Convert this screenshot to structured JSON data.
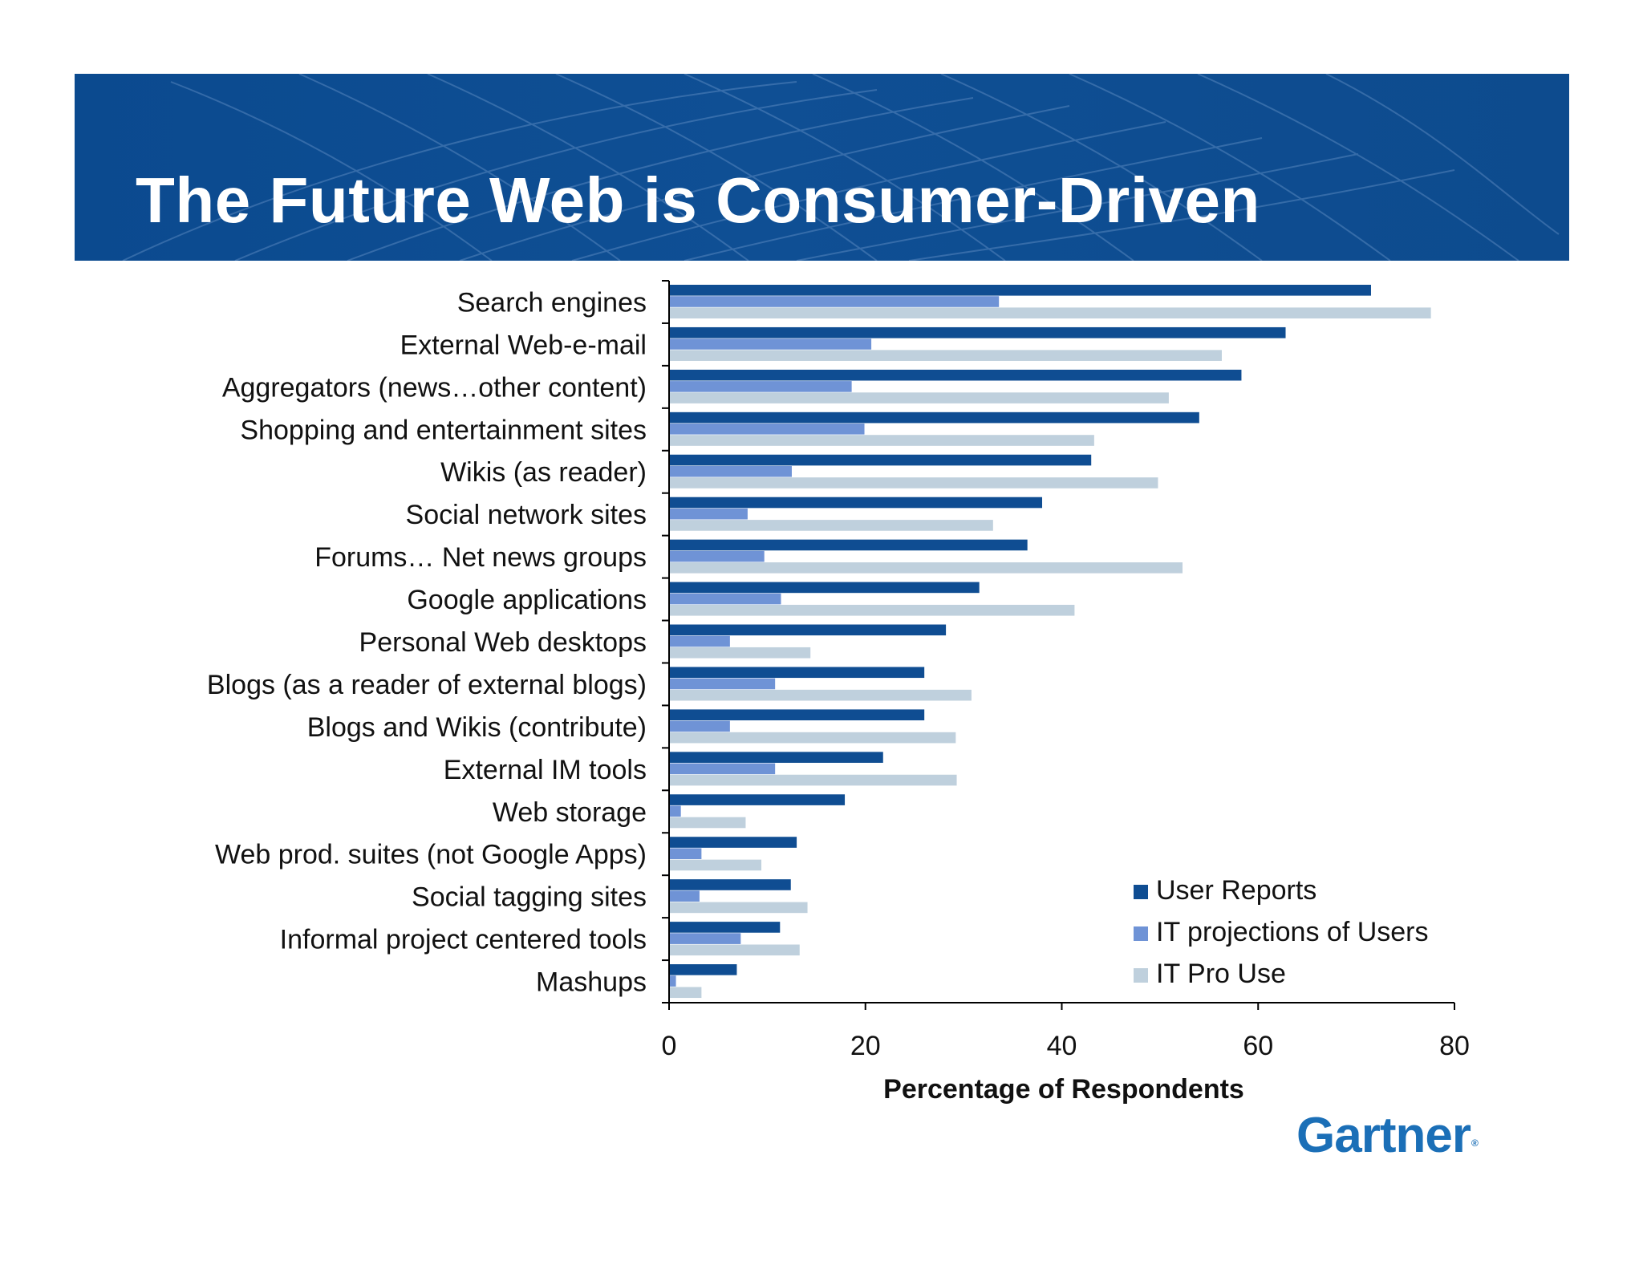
{
  "header": {
    "title": "The Future Web is Consumer-Driven"
  },
  "logo": {
    "text": "Gartner",
    "registered": "®"
  },
  "colors": {
    "banner": "#0b4a8f",
    "user_reports": "#0f4d92",
    "it_projections": "#6f93d6",
    "it_pro_use": "#bfd0dd",
    "logo": "#1b6fb7"
  },
  "chart_data": {
    "type": "bar",
    "orientation": "horizontal",
    "title": "",
    "xlabel": "Percentage of Respondents",
    "ylabel": "",
    "xlim": [
      0,
      80
    ],
    "xticks": [
      0,
      20,
      40,
      60,
      80
    ],
    "grid": false,
    "legend_position": "bottom-right",
    "categories": [
      "Search engines",
      "External Web-e-mail",
      "Aggregators (news…other content)",
      "Shopping and entertainment sites",
      "Wikis (as reader)",
      "Social network sites",
      "Forums… Net news groups",
      "Google applications",
      "Personal Web desktops",
      "Blogs (as a reader of external blogs)",
      "Blogs and Wikis (contribute)",
      "External IM tools",
      "Web storage",
      "Web prod. suites (not Google Apps)",
      "Social tagging sites",
      "Informal project centered tools",
      "Mashups"
    ],
    "series": [
      {
        "name": "User Reports",
        "color": "#0f4d92",
        "values": [
          71.5,
          62.8,
          58.3,
          54,
          43,
          38,
          36.5,
          31.6,
          28.2,
          26,
          26,
          21.8,
          17.9,
          13,
          12.4,
          11.3,
          6.9
        ]
      },
      {
        "name": "IT projections of Users",
        "color": "#6f93d6",
        "values": [
          33.6,
          20.6,
          18.6,
          19.9,
          12.5,
          8,
          9.7,
          11.4,
          6.2,
          10.8,
          6.2,
          10.8,
          1.2,
          3.3,
          3.1,
          7.3,
          0.7
        ]
      },
      {
        "name": "IT Pro Use",
        "color": "#bfd0dd",
        "values": [
          77.6,
          56.3,
          50.9,
          43.3,
          49.8,
          33,
          52.3,
          41.3,
          14.4,
          30.8,
          29.2,
          29.3,
          7.8,
          9.4,
          14.1,
          13.3,
          3.3
        ]
      }
    ]
  }
}
